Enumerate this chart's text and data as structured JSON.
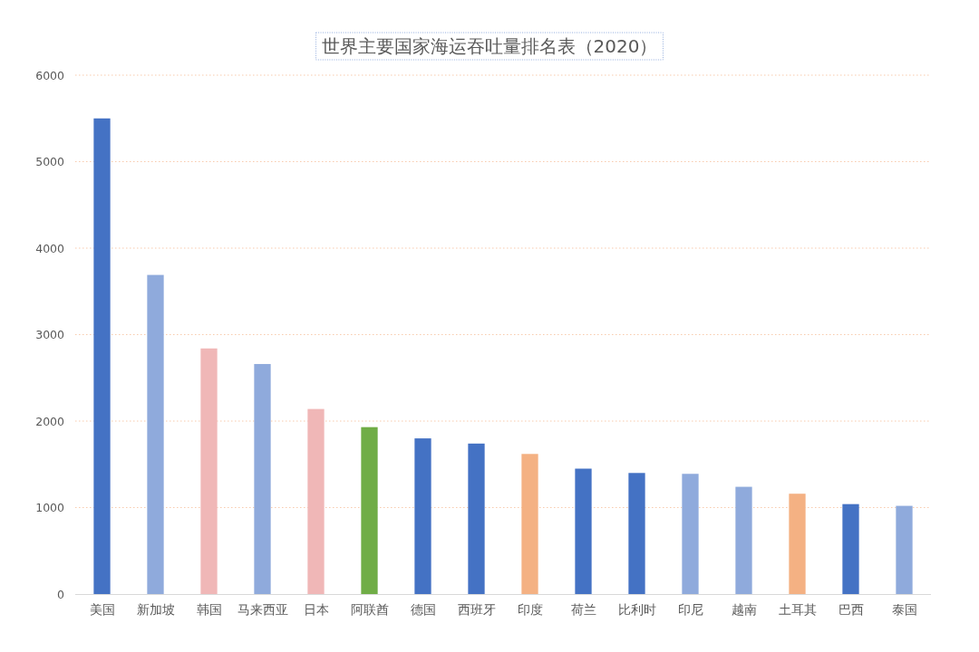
{
  "chart_data": {
    "type": "bar",
    "title": "世界主要国家海运吞吐量排名表（2020）",
    "categories": [
      "美国",
      "新加坡",
      "韩国",
      "马来西亚",
      "日本",
      "阿联酋",
      "德国",
      "西班牙",
      "印度",
      "荷兰",
      "比利时",
      "印尼",
      "越南",
      "土耳其",
      "巴西",
      "泰国"
    ],
    "values": [
      5500,
      3690,
      2840,
      2660,
      2140,
      1930,
      1800,
      1740,
      1620,
      1450,
      1400,
      1390,
      1240,
      1160,
      1040,
      1020
    ],
    "colors": [
      "#4472c4",
      "#8faadc",
      "#f0b7b7",
      "#8faadc",
      "#f0b7b7",
      "#70ad47",
      "#4472c4",
      "#4472c4",
      "#f4b183",
      "#4472c4",
      "#4472c4",
      "#8faadc",
      "#8faadc",
      "#f4b183",
      "#4472c4",
      "#8faadc"
    ],
    "ylim": [
      0,
      6000
    ],
    "yticks": [
      0,
      1000,
      2000,
      3000,
      4000,
      5000,
      6000
    ],
    "grid": "y"
  }
}
